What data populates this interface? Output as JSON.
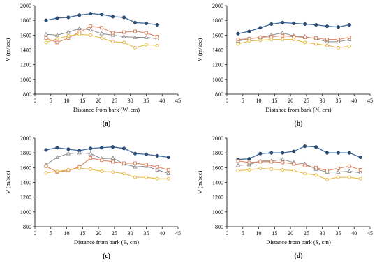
{
  "chart_data": [
    {
      "type": "line",
      "panel_label": "(a)",
      "xlabel": "Distance from bark (W, cm)",
      "ylabel": "V (m/sec)",
      "xlim": [
        0,
        45
      ],
      "ylim": [
        800,
        2000
      ],
      "xticks": [
        0,
        5,
        10,
        15,
        20,
        25,
        30,
        35,
        40,
        45
      ],
      "yticks": [
        800,
        1000,
        1200,
        1400,
        1600,
        1800,
        2000
      ],
      "grid": false,
      "series": [
        {
          "marker": "circle-filled",
          "color": "#3f6b9e",
          "x": [
            3.5,
            7,
            10.5,
            14,
            17.5,
            21,
            24.5,
            28,
            31.5,
            35,
            38.5
          ],
          "y": [
            1800,
            1830,
            1840,
            1870,
            1890,
            1880,
            1850,
            1840,
            1770,
            1760,
            1740
          ]
        },
        {
          "marker": "triangle",
          "color": "#8c8c8c",
          "x": [
            3.5,
            7,
            10.5,
            14,
            17.5,
            21,
            24.5,
            28,
            31.5,
            35,
            38.5
          ],
          "y": [
            1610,
            1600,
            1640,
            1690,
            1670,
            1620,
            1600,
            1580,
            1570,
            1570,
            1550
          ]
        },
        {
          "marker": "square",
          "color": "#d9805a",
          "x": [
            3.5,
            7,
            10.5,
            14,
            17.5,
            21,
            24.5,
            28,
            31.5,
            35,
            38.5
          ],
          "y": [
            1560,
            1500,
            1560,
            1640,
            1720,
            1700,
            1630,
            1640,
            1650,
            1630,
            1580
          ]
        },
        {
          "marker": "circle-open",
          "color": "#e6b53a",
          "x": [
            3.5,
            7,
            10.5,
            14,
            17.5,
            21,
            24.5,
            28,
            31.5,
            35,
            38.5
          ],
          "y": [
            1500,
            1550,
            1590,
            1610,
            1600,
            1560,
            1510,
            1500,
            1430,
            1470,
            1460
          ]
        }
      ]
    },
    {
      "type": "line",
      "panel_label": "(b)",
      "xlabel": "Distance from bark (N, cm)",
      "ylabel": "V (m/sec)",
      "xlim": [
        0,
        45
      ],
      "ylim": [
        800,
        2000
      ],
      "xticks": [
        0,
        5,
        10,
        15,
        20,
        25,
        30,
        35,
        40,
        45
      ],
      "yticks": [
        800,
        1000,
        1200,
        1400,
        1600,
        1800,
        2000
      ],
      "grid": false,
      "series": [
        {
          "marker": "circle-filled",
          "color": "#3f6b9e",
          "x": [
            3.5,
            7,
            10.5,
            14,
            17.5,
            21,
            24.5,
            28,
            31.5,
            35,
            38.5
          ],
          "y": [
            1620,
            1650,
            1700,
            1750,
            1770,
            1760,
            1750,
            1740,
            1720,
            1710,
            1740
          ]
        },
        {
          "marker": "triangle",
          "color": "#8c8c8c",
          "x": [
            3.5,
            7,
            10.5,
            14,
            17.5,
            21,
            24.5,
            28,
            31.5,
            35,
            38.5
          ],
          "y": [
            1520,
            1550,
            1570,
            1600,
            1630,
            1590,
            1580,
            1550,
            1510,
            1510,
            1540
          ]
        },
        {
          "marker": "square",
          "color": "#d9805a",
          "x": [
            3.5,
            7,
            10.5,
            14,
            17.5,
            21,
            24.5,
            28,
            31.5,
            35,
            38.5
          ],
          "y": [
            1540,
            1550,
            1570,
            1580,
            1590,
            1580,
            1570,
            1560,
            1540,
            1540,
            1570
          ]
        },
        {
          "marker": "circle-open",
          "color": "#e6b53a",
          "x": [
            3.5,
            7,
            10.5,
            14,
            17.5,
            21,
            24.5,
            28,
            31.5,
            35,
            38.5
          ],
          "y": [
            1480,
            1520,
            1530,
            1540,
            1540,
            1540,
            1500,
            1480,
            1460,
            1430,
            1450
          ]
        }
      ]
    },
    {
      "type": "line",
      "panel_label": "(c)",
      "xlabel": "Distance from bark (E, cm)",
      "ylabel": "V (m/sec)",
      "xlim": [
        0,
        45
      ],
      "ylim": [
        800,
        2000
      ],
      "xticks": [
        0,
        5,
        10,
        15,
        20,
        25,
        30,
        35,
        40,
        45
      ],
      "yticks": [
        800,
        1000,
        1200,
        1400,
        1600,
        1800,
        2000
      ],
      "grid": false,
      "series": [
        {
          "marker": "circle-filled",
          "color": "#3f6b9e",
          "x": [
            3.5,
            7,
            10.5,
            14,
            17.5,
            21,
            24.5,
            28,
            31.5,
            35,
            38.5,
            42
          ],
          "y": [
            1840,
            1870,
            1850,
            1830,
            1860,
            1870,
            1880,
            1860,
            1790,
            1780,
            1760,
            1740
          ]
        },
        {
          "marker": "triangle",
          "color": "#8c8c8c",
          "x": [
            3.5,
            7,
            10.5,
            14,
            17.5,
            21,
            24.5,
            28,
            31.5,
            35,
            38.5,
            42
          ],
          "y": [
            1640,
            1740,
            1790,
            1800,
            1790,
            1720,
            1730,
            1650,
            1610,
            1620,
            1570,
            1520
          ]
        },
        {
          "marker": "square",
          "color": "#d9805a",
          "x": [
            3.5,
            7,
            10.5,
            14,
            17.5,
            21,
            24.5,
            28,
            31.5,
            35,
            38.5,
            42
          ],
          "y": [
            1620,
            1540,
            1560,
            1610,
            1730,
            1700,
            1680,
            1660,
            1660,
            1640,
            1610,
            1570
          ]
        },
        {
          "marker": "circle-open",
          "color": "#e6b53a",
          "x": [
            3.5,
            7,
            10.5,
            14,
            17.5,
            21,
            24.5,
            28,
            31.5,
            35,
            38.5,
            42
          ],
          "y": [
            1530,
            1550,
            1570,
            1590,
            1580,
            1550,
            1540,
            1520,
            1470,
            1470,
            1450,
            1450
          ]
        }
      ]
    },
    {
      "type": "line",
      "panel_label": "(d)",
      "xlabel": "Distance from bark (S, cm)",
      "ylabel": "V (m/sec)",
      "xlim": [
        0,
        45
      ],
      "ylim": [
        800,
        2000
      ],
      "xticks": [
        0,
        5,
        10,
        15,
        20,
        25,
        30,
        35,
        40,
        45
      ],
      "yticks": [
        800,
        1000,
        1200,
        1400,
        1600,
        1800,
        2000
      ],
      "grid": false,
      "series": [
        {
          "marker": "circle-filled",
          "color": "#3f6b9e",
          "x": [
            3.5,
            7,
            10.5,
            14,
            17.5,
            21,
            24.5,
            28,
            31.5,
            35,
            38.5,
            42
          ],
          "y": [
            1710,
            1720,
            1790,
            1800,
            1800,
            1820,
            1890,
            1880,
            1800,
            1800,
            1800,
            1740
          ]
        },
        {
          "marker": "triangle",
          "color": "#8c8c8c",
          "x": [
            3.5,
            7,
            10.5,
            14,
            17.5,
            21,
            24.5,
            28,
            31.5,
            35,
            38.5,
            42
          ],
          "y": [
            1630,
            1640,
            1690,
            1690,
            1710,
            1670,
            1650,
            1580,
            1540,
            1540,
            1550,
            1530
          ]
        },
        {
          "marker": "square",
          "color": "#d9805a",
          "x": [
            3.5,
            7,
            10.5,
            14,
            17.5,
            21,
            24.5,
            28,
            31.5,
            35,
            38.5,
            42
          ],
          "y": [
            1690,
            1670,
            1680,
            1680,
            1670,
            1650,
            1630,
            1600,
            1560,
            1590,
            1620,
            1570
          ]
        },
        {
          "marker": "circle-open",
          "color": "#e6b53a",
          "x": [
            3.5,
            7,
            10.5,
            14,
            17.5,
            21,
            24.5,
            28,
            31.5,
            35,
            38.5,
            42
          ],
          "y": [
            1560,
            1570,
            1590,
            1580,
            1570,
            1560,
            1520,
            1500,
            1440,
            1470,
            1470,
            1450
          ]
        }
      ]
    }
  ]
}
